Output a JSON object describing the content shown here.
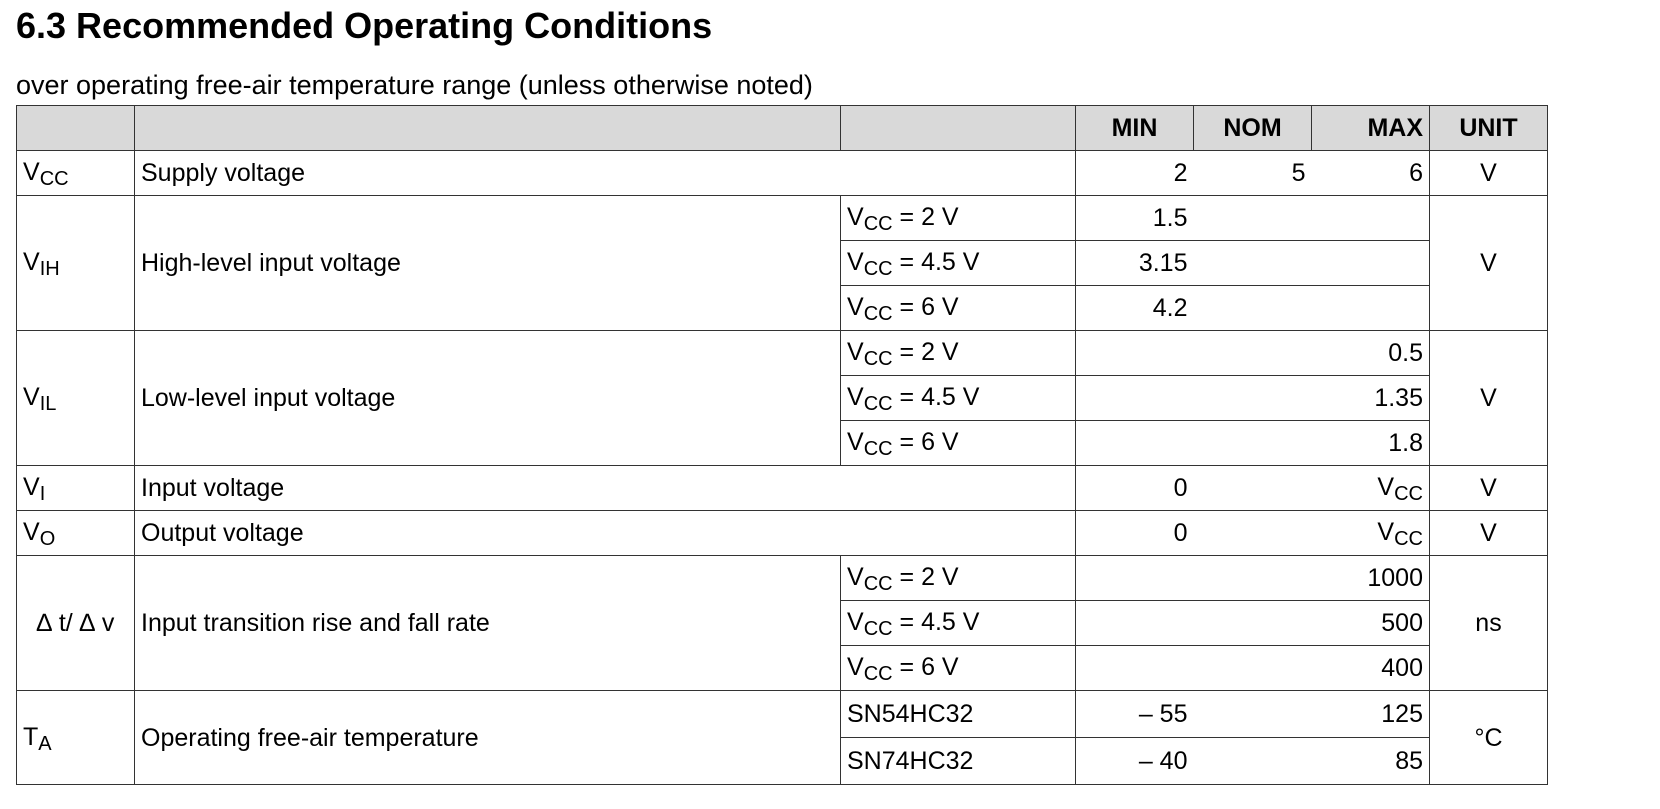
{
  "title": "6.3 Recommended Operating Conditions",
  "subtitle": "over operating free-air temperature range (unless otherwise noted)",
  "header": {
    "min": "MIN",
    "nom": "NOM",
    "max": "MAX",
    "unit": "UNIT"
  },
  "rows": {
    "vcc": {
      "sym_base": "V",
      "sym_sub": "CC",
      "param": "Supply voltage",
      "min": "2",
      "nom": "5",
      "max": "6",
      "unit": "V"
    },
    "vih": {
      "sym_base": "V",
      "sym_sub": "IH",
      "param": "High-level input voltage",
      "unit": "V",
      "conds": [
        {
          "base": "V",
          "sub": "CC",
          "rest": " = 2 V",
          "min": "1.5",
          "max": ""
        },
        {
          "base": "V",
          "sub": "CC",
          "rest": " = 4.5 V",
          "min": "3.15",
          "max": ""
        },
        {
          "base": "V",
          "sub": "CC",
          "rest": " = 6 V",
          "min": "4.2",
          "max": ""
        }
      ]
    },
    "vil": {
      "sym_base": "V",
      "sym_sub": "IL",
      "param": "Low-level input voltage",
      "unit": "V",
      "conds": [
        {
          "base": "V",
          "sub": "CC",
          "rest": " = 2 V",
          "min": "",
          "max": "0.5"
        },
        {
          "base": "V",
          "sub": "CC",
          "rest": " = 4.5 V",
          "min": "",
          "max": "1.35"
        },
        {
          "base": "V",
          "sub": "CC",
          "rest": " = 6 V",
          "min": "",
          "max": "1.8"
        }
      ]
    },
    "vi": {
      "sym_base": "V",
      "sym_sub": "I",
      "param": "Input voltage",
      "min": "0",
      "max_base": "V",
      "max_sub": "CC",
      "unit": "V"
    },
    "vo": {
      "sym_base": "V",
      "sym_sub": "O",
      "param": "Output voltage",
      "min": "0",
      "max_base": "V",
      "max_sub": "CC",
      "unit": "V"
    },
    "dtdv": {
      "sym": "∆ t/ ∆ v",
      "param": "Input transition rise and fall rate",
      "unit": "ns",
      "conds": [
        {
          "base": "V",
          "sub": "CC",
          "rest": " = 2 V",
          "max": "1000"
        },
        {
          "base": "V",
          "sub": "CC",
          "rest": " = 4.5 V",
          "max": "500"
        },
        {
          "base": "V",
          "sub": "CC",
          "rest": " = 6 V",
          "max": "400"
        }
      ]
    },
    "ta": {
      "sym_base": "T",
      "sym_sub": "A",
      "param": "Operating free-air temperature",
      "unit": "°C",
      "conds": [
        {
          "part": "SN54HC32",
          "min": "– 55",
          "max": "125"
        },
        {
          "part": "SN74HC32",
          "min": "– 40",
          "max": "85"
        }
      ]
    }
  }
}
